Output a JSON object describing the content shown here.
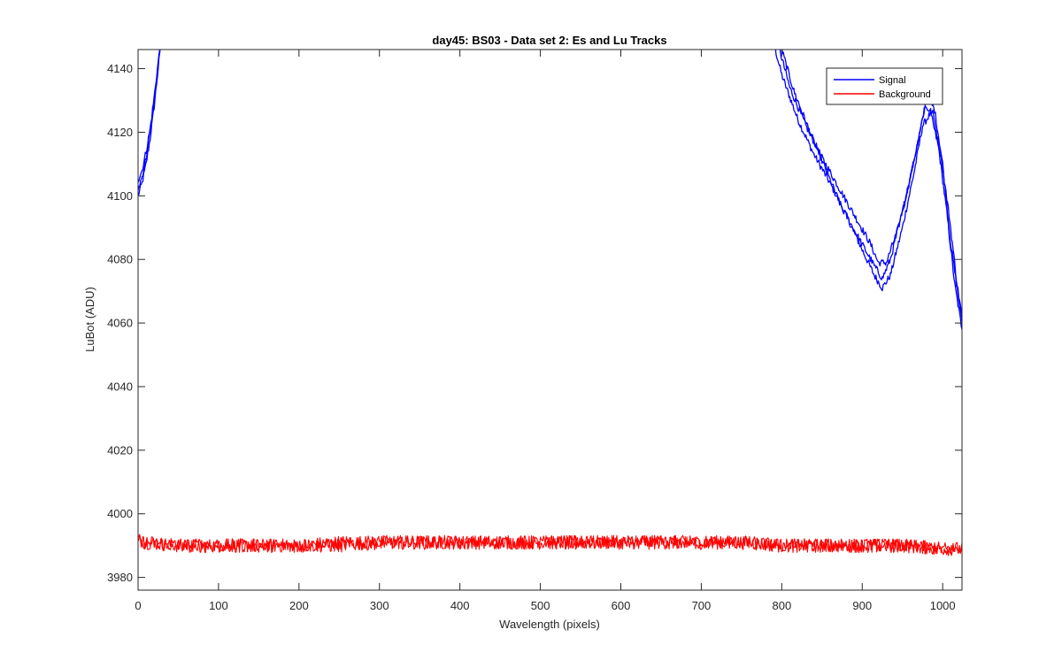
{
  "chart_data": {
    "type": "line",
    "title": "day45: BS03 - Data set 2: Es and Lu Tracks",
    "xlabel": "Wavelength (pixels)",
    "ylabel": "LuBot (ADU)",
    "xlim": [
      0,
      1024
    ],
    "ylim": [
      3976,
      4146
    ],
    "xticks": [
      0,
      100,
      200,
      300,
      400,
      500,
      600,
      700,
      800,
      900,
      1000
    ],
    "yticks": [
      3980,
      4000,
      4020,
      4040,
      4060,
      4080,
      4100,
      4120,
      4140
    ],
    "grid": false,
    "legend_position": "top-right",
    "series": [
      {
        "name": "Signal",
        "color": "#0000ff",
        "tracks": [
          {
            "x": [
              0,
              5,
              10,
              15,
              20,
              25,
              28,
              790,
              800,
              820,
              840,
              860,
              880,
              900,
              915,
              925,
              935,
              950,
              965,
              975,
              985,
              995,
              1005,
              1015,
              1024
            ],
            "y": [
              4100,
              4104,
              4110,
              4118,
              4128,
              4140,
              4148,
              4148,
              4138,
              4124,
              4113,
              4104,
              4094,
              4083,
              4075,
              4071,
              4075,
              4090,
              4108,
              4122,
              4126,
              4115,
              4095,
              4072,
              4058
            ]
          },
          {
            "x": [
              0,
              5,
              10,
              15,
              20,
              25,
              28,
              795,
              810,
              830,
              850,
              870,
              890,
              910,
              920,
              930,
              945,
              960,
              975,
              980,
              990,
              1000,
              1010,
              1024
            ],
            "y": [
              4105,
              4108,
              4114,
              4121,
              4131,
              4142,
              4148,
              4148,
              4134,
              4122,
              4112,
              4103,
              4094,
              4085,
              4079,
              4079,
              4090,
              4106,
              4124,
              4132,
              4127,
              4110,
              4085,
              4060
            ]
          },
          {
            "x": [
              0,
              5,
              10,
              15,
              20,
              25,
              28,
              800,
              815,
              835,
              855,
              875,
              895,
              915,
              925,
              935,
              950,
              965,
              978,
              988,
              998,
              1008,
              1018,
              1024
            ],
            "y": [
              4102,
              4106,
              4112,
              4120,
              4130,
              4141,
              4148,
              4146,
              4133,
              4120,
              4108,
              4096,
              4087,
              4078,
              4074,
              4080,
              4095,
              4112,
              4128,
              4126,
              4112,
              4094,
              4072,
              4062
            ]
          }
        ]
      },
      {
        "name": "Background",
        "color": "#ff0000",
        "tracks": [
          {
            "x": [
              0,
              10,
              50,
              100,
              150,
              200,
              250,
              300,
              350,
              400,
              450,
              500,
              550,
              600,
              650,
              700,
              750,
              800,
              850,
              900,
              950,
              1000,
              1024
            ],
            "y": [
              3992,
              3991,
              3990,
              3990,
              3990,
              3990,
              3991,
              3991,
              3991,
              3991,
              3991,
              3991,
              3991,
              3991,
              3991,
              3991,
              3991,
              3990,
              3990,
              3990,
              3990,
              3989,
              3989
            ],
            "noise": 2.2
          },
          {
            "x": [
              0,
              10,
              50,
              100,
              150,
              200,
              250,
              300,
              350,
              400,
              450,
              500,
              550,
              600,
              650,
              700,
              750,
              800,
              850,
              900,
              950,
              1000,
              1024
            ],
            "y": [
              3991,
              3991,
              3990,
              3990,
              3990,
              3990,
              3990,
              3991,
              3991,
              3991,
              3991,
              3991,
              3991,
              3991,
              3991,
              3991,
              3991,
              3990,
              3990,
              3990,
              3990,
              3989,
              3989
            ],
            "noise": 2.2
          }
        ]
      }
    ]
  }
}
